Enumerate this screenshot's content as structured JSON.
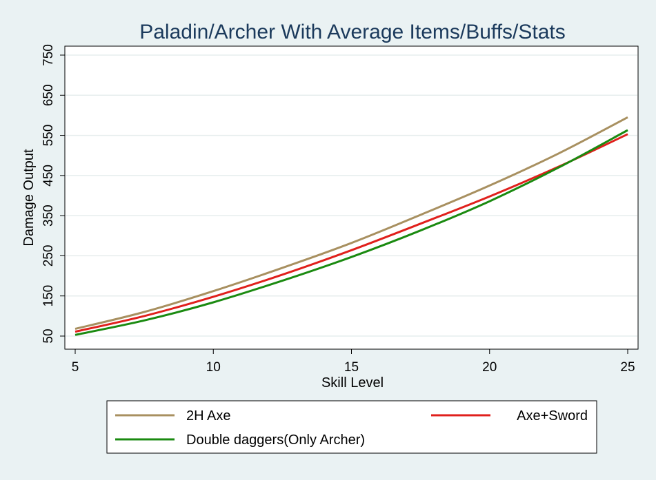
{
  "chart_data": {
    "type": "line",
    "title": "Paladin/Archer With Average Items/Buffs/Stats",
    "xlabel": "Skill Level",
    "ylabel": "Damage Output",
    "xlim": [
      5,
      25
    ],
    "ylim": [
      50,
      750
    ],
    "xticks": [
      5,
      10,
      15,
      20,
      25
    ],
    "yticks": [
      50,
      150,
      250,
      350,
      450,
      550,
      650,
      750
    ],
    "grid": true,
    "legend_position": "bottom",
    "x": [
      5,
      7.5,
      10,
      12.5,
      15,
      17.5,
      20,
      22.5,
      25
    ],
    "series": [
      {
        "name": "2H Axe",
        "color": "#a89060",
        "values": [
          68,
          110,
          162,
          220,
          282,
          352,
          425,
          505,
          595
        ]
      },
      {
        "name": "Axe+Sword",
        "color": "#e0201c",
        "values": [
          61,
          100,
          148,
          203,
          264,
          330,
          398,
          472,
          553
        ]
      },
      {
        "name": "Double daggers(Only Archer)",
        "color": "#1a8a10",
        "values": [
          53,
          89,
          134,
          188,
          247,
          313,
          386,
          470,
          563
        ]
      }
    ]
  }
}
